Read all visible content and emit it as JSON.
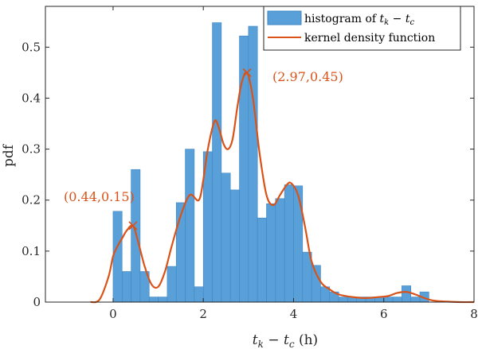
{
  "chart_data": {
    "type": "bar",
    "xlabel": "t_k − t_c (h)",
    "ylabel": "pdf",
    "xlim": [
      -1.5,
      8
    ],
    "ylim": [
      0,
      0.58
    ],
    "xticks": [
      0,
      2,
      4,
      6,
      8
    ],
    "yticks": [
      0,
      0.1,
      0.2,
      0.3,
      0.4,
      0.5
    ],
    "grid": false,
    "legend_position": "top-right",
    "colors": {
      "bars": "#5aa0d8",
      "bar_edge": "#3d86c6",
      "kde": "#d95319",
      "axis": "#262626"
    },
    "series": [
      {
        "name": "histogram of t_k − t_c",
        "type": "bar",
        "bin_width": 0.2,
        "bins_start": [
          0.0,
          0.2,
          0.4,
          0.6,
          0.8,
          1.0,
          1.2,
          1.4,
          1.6,
          1.8,
          2.0,
          2.2,
          2.4,
          2.6,
          2.8,
          3.0,
          3.2,
          3.4,
          3.6,
          3.8,
          4.0,
          4.2,
          4.4,
          4.6,
          4.8,
          5.0,
          5.2,
          5.4,
          5.6,
          5.8,
          6.0,
          6.2,
          6.4,
          6.6,
          6.8
        ],
        "values": [
          0.178,
          0.06,
          0.26,
          0.06,
          0.01,
          0.01,
          0.07,
          0.195,
          0.3,
          0.03,
          0.295,
          0.548,
          0.253,
          0.22,
          0.522,
          0.541,
          0.165,
          0.193,
          0.203,
          0.23,
          0.228,
          0.098,
          0.072,
          0.03,
          0.02,
          0.01,
          0.01,
          0.01,
          0.01,
          0.01,
          0.01,
          0.01,
          0.032,
          0.01,
          0.02
        ]
      },
      {
        "name": "kernel density function",
        "type": "line",
        "x": [
          -0.5,
          -0.3,
          -0.1,
          0.0,
          0.1,
          0.2,
          0.3,
          0.44,
          0.55,
          0.7,
          0.85,
          1.0,
          1.15,
          1.3,
          1.5,
          1.7,
          1.9,
          2.0,
          2.1,
          2.25,
          2.35,
          2.45,
          2.55,
          2.65,
          2.75,
          2.85,
          2.97,
          3.1,
          3.25,
          3.4,
          3.55,
          3.7,
          3.85,
          3.95,
          4.1,
          4.25,
          4.4,
          4.6,
          4.8,
          5.0,
          5.3,
          5.6,
          5.9,
          6.1,
          6.3,
          6.5,
          6.7,
          6.9,
          7.1,
          7.4,
          7.7,
          8.0
        ],
        "y": [
          0.0,
          0.005,
          0.05,
          0.09,
          0.11,
          0.125,
          0.14,
          0.15,
          0.12,
          0.07,
          0.035,
          0.03,
          0.06,
          0.11,
          0.17,
          0.21,
          0.2,
          0.24,
          0.3,
          0.355,
          0.34,
          0.31,
          0.3,
          0.32,
          0.38,
          0.43,
          0.45,
          0.4,
          0.29,
          0.21,
          0.19,
          0.21,
          0.23,
          0.233,
          0.21,
          0.15,
          0.08,
          0.04,
          0.025,
          0.015,
          0.01,
          0.008,
          0.01,
          0.012,
          0.018,
          0.02,
          0.015,
          0.008,
          0.003,
          0.001,
          0.0,
          0.0
        ]
      }
    ],
    "annotations": [
      {
        "text": "(0.44,0.15)",
        "x": 0.44,
        "y": 0.15
      },
      {
        "text": "(2.97,0.45)",
        "x": 2.97,
        "y": 0.45
      }
    ]
  }
}
